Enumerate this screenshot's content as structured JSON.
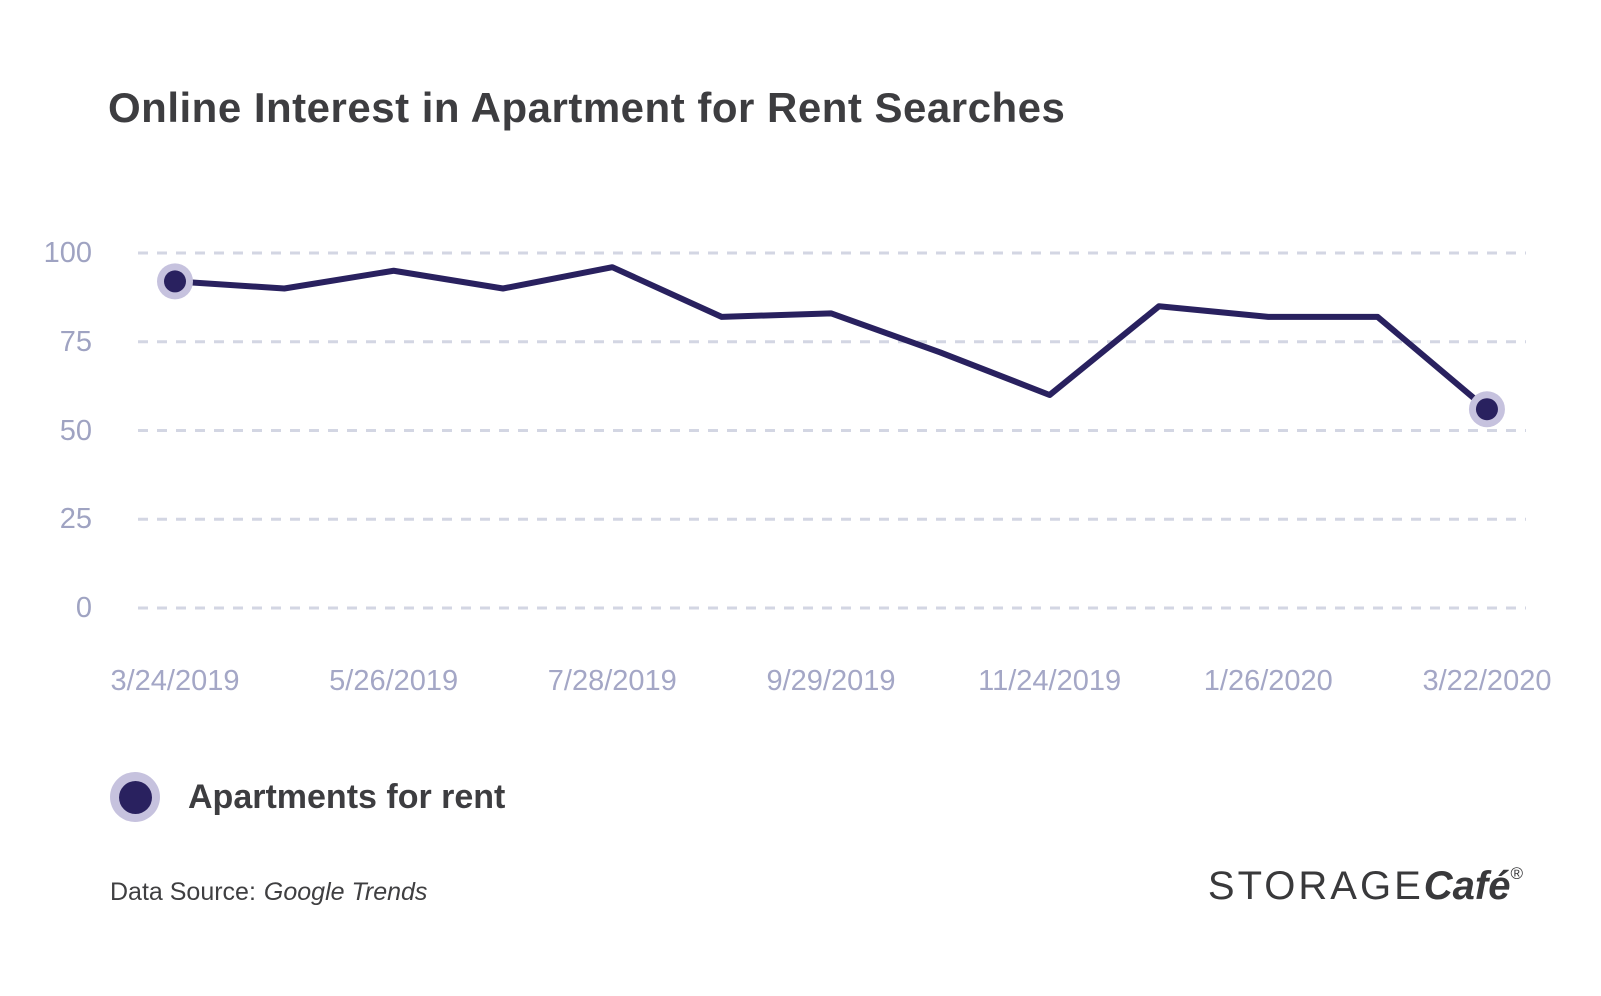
{
  "title": "Online Interest in Apartment for Rent Searches",
  "legend": {
    "label": "Apartments for rent"
  },
  "source": {
    "prefix": "Data Source:",
    "name": "Google Trends"
  },
  "logo": {
    "part1": "STORAGE",
    "part2": "Café",
    "registered": "®"
  },
  "colors": {
    "line": "#29215f",
    "marker_fill": "#29215f",
    "marker_halo": "#c6c2de",
    "grid": "#d3d6e3",
    "y_axis_text": "#9fa3c2",
    "x_axis_text": "#a4a7c6",
    "title_text": "#3d3d40",
    "background": "#ffffff"
  },
  "chart_data": {
    "type": "line",
    "title": "Online Interest in Apartment for Rent Searches",
    "xlabel": "",
    "ylabel": "",
    "ylim": [
      0,
      100
    ],
    "y_ticks": [
      0,
      25,
      50,
      75,
      100
    ],
    "grid": "horizontal-dashed",
    "legend_position": "bottom-left",
    "markers": "first-and-last-point-only",
    "x_tick_labels": [
      "3/24/2019",
      "5/26/2019",
      "7/28/2019",
      "9/29/2019",
      "11/24/2019",
      "1/26/2020",
      "3/22/2020"
    ],
    "x_ticks_every_n_points": 2,
    "points_count": 13,
    "series": [
      {
        "name": "Apartments for rent",
        "color": "#29215f",
        "values": [
          92,
          90,
          95,
          90,
          96,
          82,
          83,
          72,
          60,
          85,
          82,
          82,
          56
        ]
      }
    ]
  }
}
